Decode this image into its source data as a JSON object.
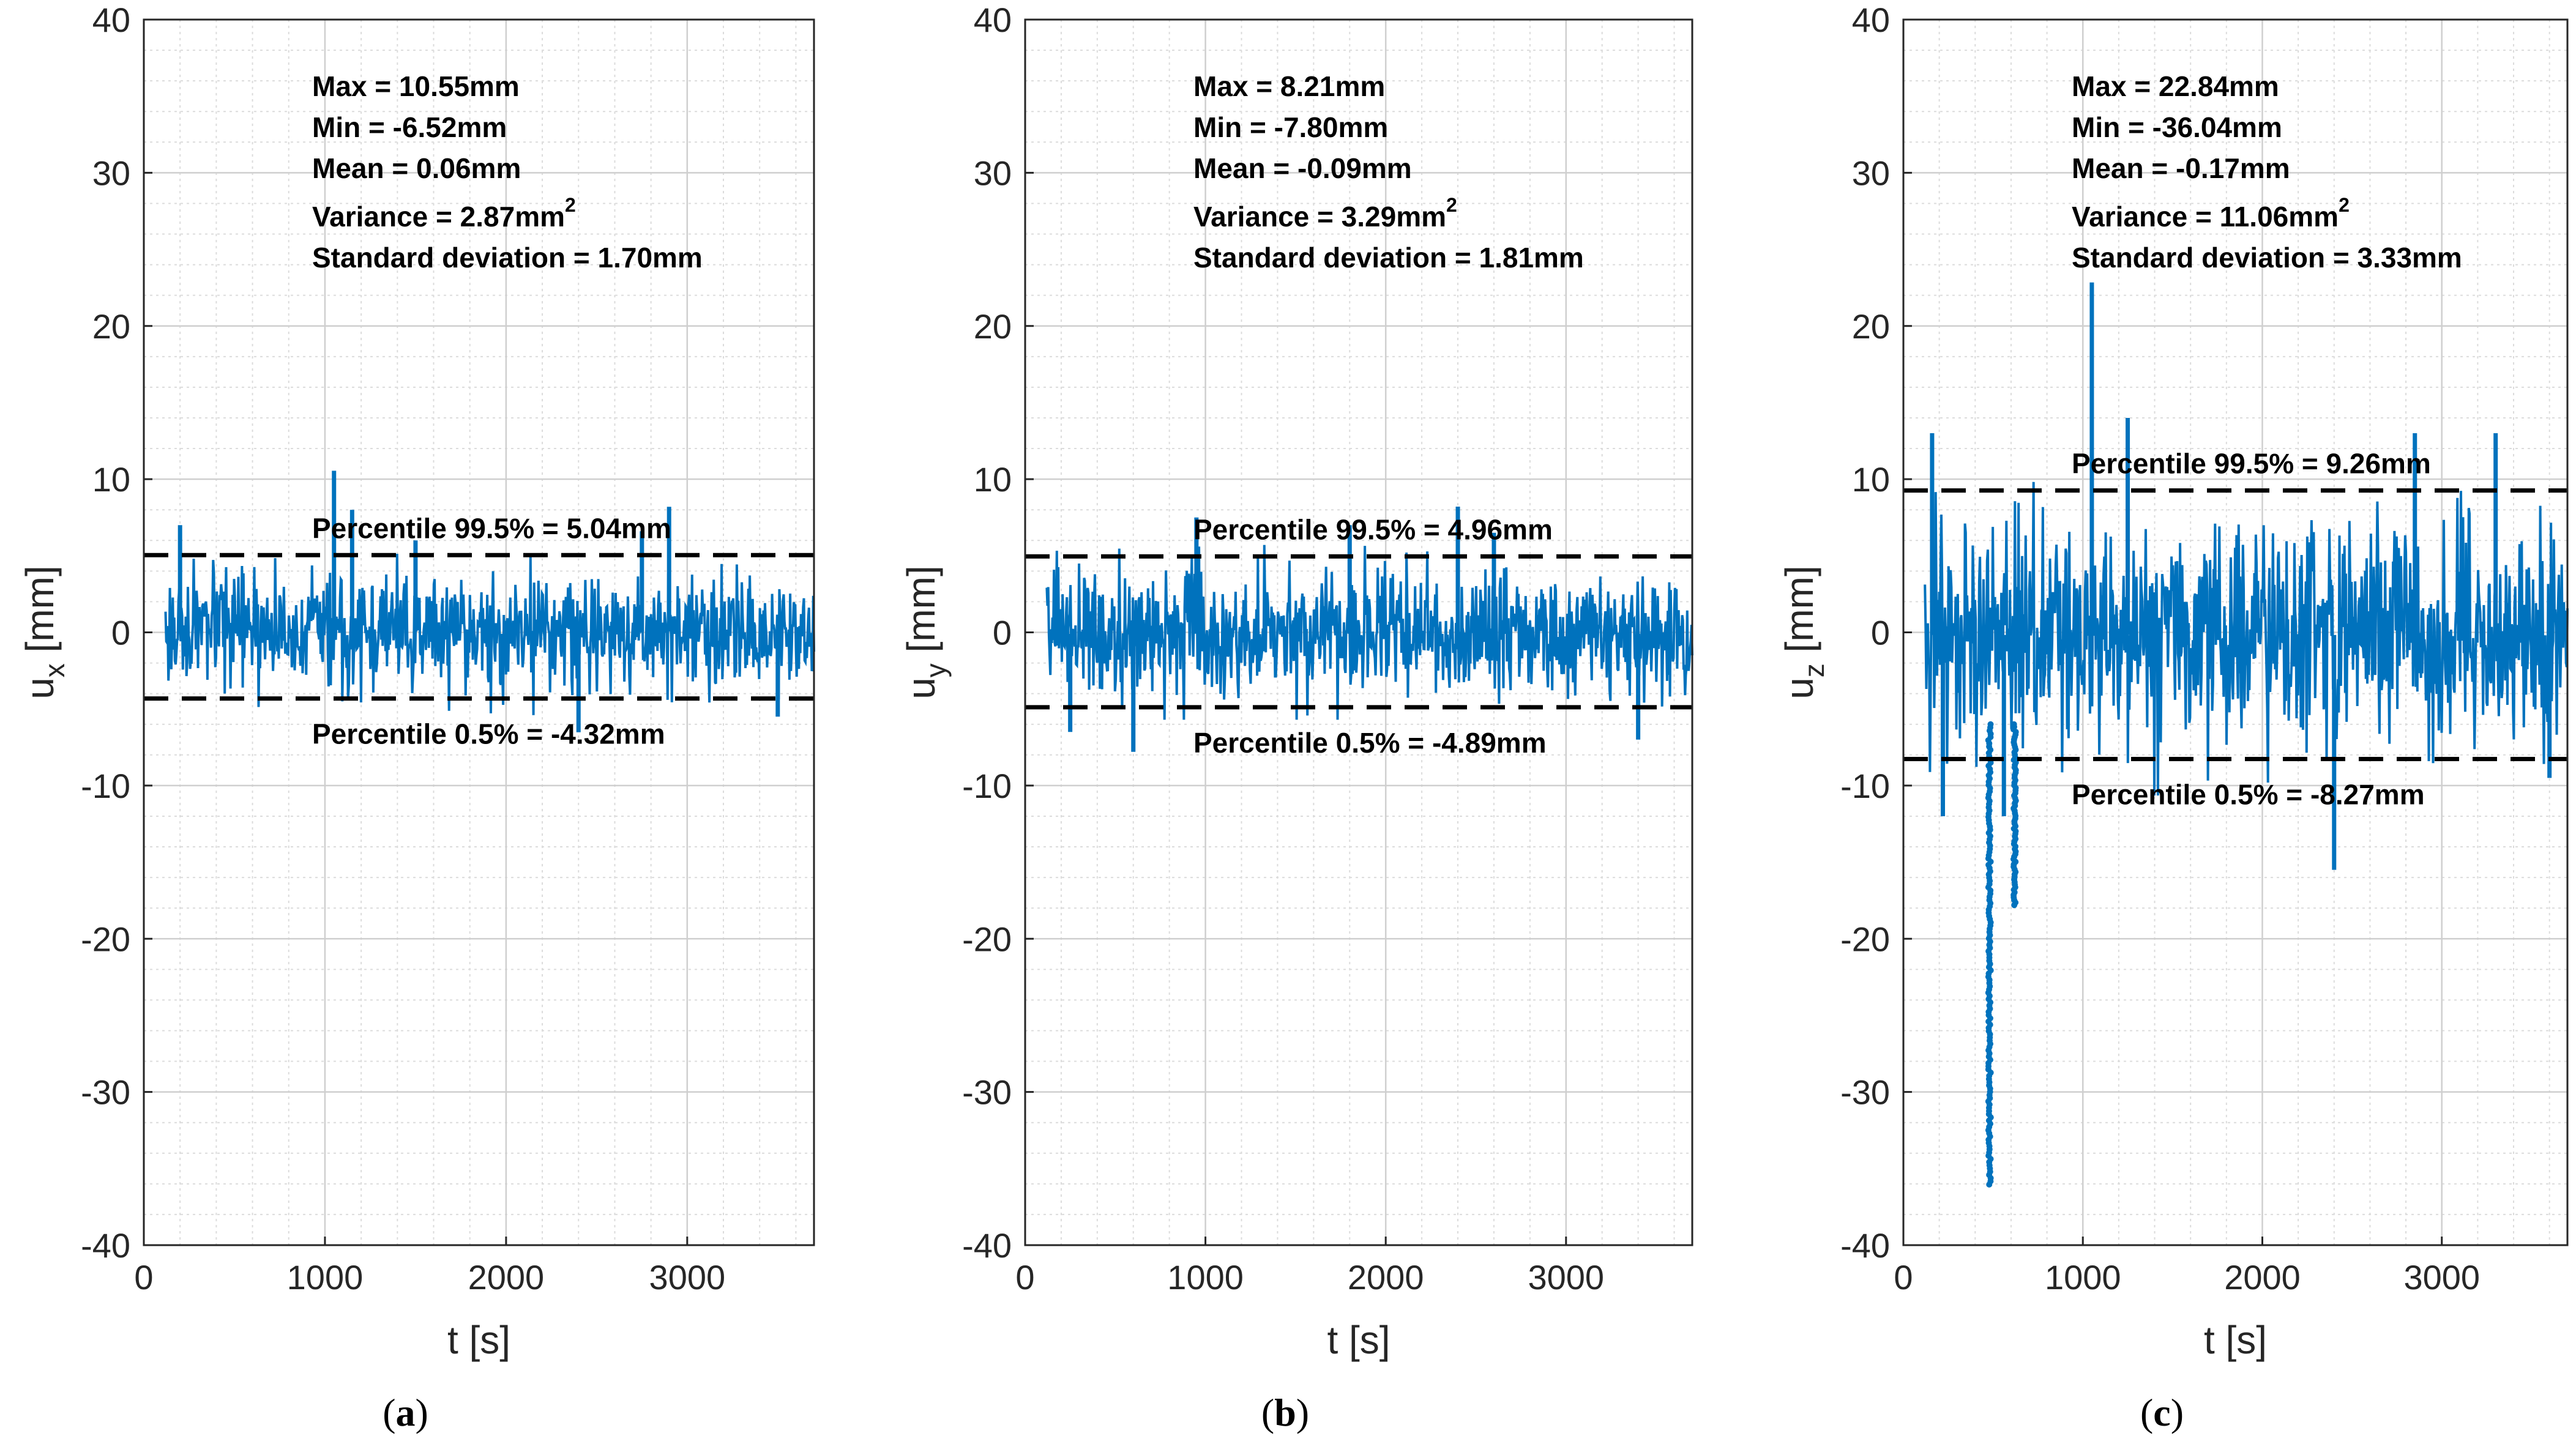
{
  "chart_data": [
    {
      "type": "line",
      "panel_label": "a",
      "xlabel": "t [s]",
      "ylabel": "u",
      "ylabel_sub": "x",
      "ylabel_unit": "[mm]",
      "xlim": [
        0,
        3700
      ],
      "ylim": [
        -40,
        40
      ],
      "xticks": [
        0,
        1000,
        2000,
        3000
      ],
      "yticks": [
        -40,
        -30,
        -20,
        -10,
        0,
        10,
        20,
        30,
        40
      ],
      "grid": true,
      "series_color": "#0072BD",
      "t_start": 120,
      "t_end": 3700,
      "stats": {
        "max": "Max = 10.55mm",
        "min": "Min = -6.52mm",
        "mean": "Mean = 0.06mm",
        "variance": "Variance = 2.87mm",
        "variance_sup": "2",
        "std": "Standard deviation = 1.70mm"
      },
      "summary": {
        "max": 10.55,
        "min": -6.52,
        "mean": 0.06,
        "std": 1.7
      },
      "percentile_upper": {
        "value": 5.04,
        "label": "Percentile 99.5% = 5.04mm"
      },
      "percentile_lower": {
        "value": -4.32,
        "label": "Percentile 0.5% = -4.32mm"
      },
      "spikes": [
        [
          1050,
          10.55
        ],
        [
          200,
          7.0
        ],
        [
          1150,
          8.0
        ],
        [
          2900,
          8.2
        ],
        [
          2400,
          -6.52
        ],
        [
          2750,
          6.6
        ],
        [
          1500,
          6.0
        ],
        [
          3500,
          -5.5
        ]
      ],
      "outliers": []
    },
    {
      "type": "line",
      "panel_label": "b",
      "xlabel": "t [s]",
      "ylabel": "u",
      "ylabel_sub": "y",
      "ylabel_unit": "[mm]",
      "xlim": [
        0,
        3700
      ],
      "ylim": [
        -40,
        40
      ],
      "xticks": [
        0,
        1000,
        2000,
        3000
      ],
      "yticks": [
        -40,
        -30,
        -20,
        -10,
        0,
        10,
        20,
        30,
        40
      ],
      "grid": true,
      "series_color": "#0072BD",
      "t_start": 120,
      "t_end": 3700,
      "stats": {
        "max": "Max = 8.21mm",
        "min": "Min = -7.80mm",
        "mean": "Mean = -0.09mm",
        "variance": "Variance = 3.29mm",
        "variance_sup": "2",
        "std": "Standard deviation = 1.81mm"
      },
      "summary": {
        "max": 8.21,
        "min": -7.8,
        "mean": -0.09,
        "std": 1.81
      },
      "percentile_upper": {
        "value": 4.96,
        "label": "Percentile 99.5% = 4.96mm"
      },
      "percentile_lower": {
        "value": -4.89,
        "label": "Percentile 0.5% = -4.89mm"
      },
      "spikes": [
        [
          2400,
          8.21
        ],
        [
          600,
          -7.8
        ],
        [
          950,
          7.5
        ],
        [
          1800,
          7.0
        ],
        [
          3400,
          -7.0
        ],
        [
          250,
          -6.5
        ],
        [
          2600,
          6.5
        ]
      ],
      "outliers": []
    },
    {
      "type": "line",
      "panel_label": "c",
      "xlabel": "t [s]",
      "ylabel": "u",
      "ylabel_sub": "z",
      "ylabel_unit": "[mm]",
      "xlim": [
        0,
        3700
      ],
      "ylim": [
        -40,
        40
      ],
      "xticks": [
        0,
        1000,
        2000,
        3000
      ],
      "yticks": [
        -40,
        -30,
        -20,
        -10,
        0,
        10,
        20,
        30,
        40
      ],
      "grid": true,
      "series_color": "#0072BD",
      "t_start": 120,
      "t_end": 3700,
      "stats": {
        "max": "Max = 22.84mm",
        "min": "Min = -36.04mm",
        "mean": "Mean = -0.17mm",
        "variance": "Variance = 11.06mm",
        "variance_sup": "2",
        "std": "Standard deviation = 3.33mm"
      },
      "summary": {
        "max": 22.84,
        "min": -36.04,
        "mean": -0.17,
        "std": 3.33
      },
      "percentile_upper": {
        "value": 9.26,
        "label": "Percentile 99.5% = 9.26mm"
      },
      "percentile_lower": {
        "value": -8.27,
        "label": "Percentile 0.5% = -8.27mm"
      },
      "spikes": [
        [
          1050,
          22.84
        ],
        [
          1250,
          14.0
        ],
        [
          160,
          13.0
        ],
        [
          3300,
          13.0
        ],
        [
          2850,
          13.0
        ],
        [
          2400,
          -15.5
        ],
        [
          220,
          -12.0
        ],
        [
          560,
          -12.0
        ],
        [
          3600,
          -9.5
        ]
      ],
      "outliers": [
        [
          480,
          -36.04
        ],
        [
          620,
          -17.8
        ]
      ]
    }
  ]
}
